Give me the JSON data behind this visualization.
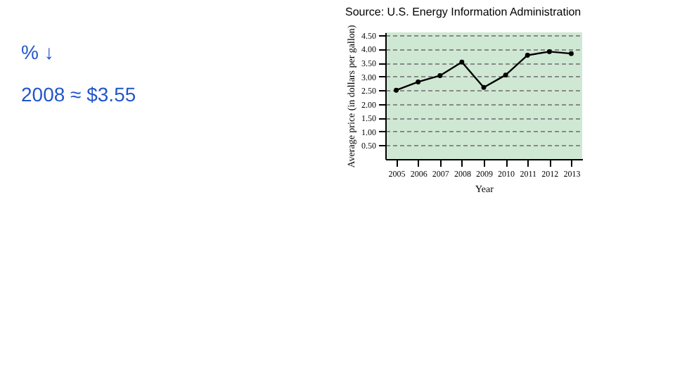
{
  "chart_data": {
    "type": "line",
    "xlabel": "Year",
    "ylabel": "Average price (in dollars per gallon)",
    "categories": [
      "2005",
      "2006",
      "2007",
      "2008",
      "2009",
      "2010",
      "2011",
      "2012",
      "2013"
    ],
    "series": [
      {
        "color": "#000000",
        "values": [
          2.5,
          2.8,
          3.03,
          3.52,
          2.6,
          3.05,
          3.77,
          3.9,
          3.83
        ]
      }
    ],
    "ylim": [
      0,
      4.6
    ],
    "yticks": [
      {
        "value": 0.5,
        "label": "0.50"
      },
      {
        "value": 1,
        "label": "1.00"
      },
      {
        "value": 1.5,
        "label": "1.50"
      },
      {
        "value": 2,
        "label": "2.00"
      },
      {
        "value": 2.5,
        "label": "2.50"
      },
      {
        "value": 3,
        "label": "3.00"
      },
      {
        "value": 3.5,
        "label": "3.50"
      },
      {
        "value": 4,
        "label": "4.00"
      },
      {
        "value": 4.5,
        "label": "4.50"
      }
    ],
    "grid": "y",
    "marker": "circle",
    "line_style": "solid",
    "annotations": [
      "Source: U.S. Energy Information Administration",
      "% ↓",
      "2008 ≈ $3.55"
    ]
  }
}
